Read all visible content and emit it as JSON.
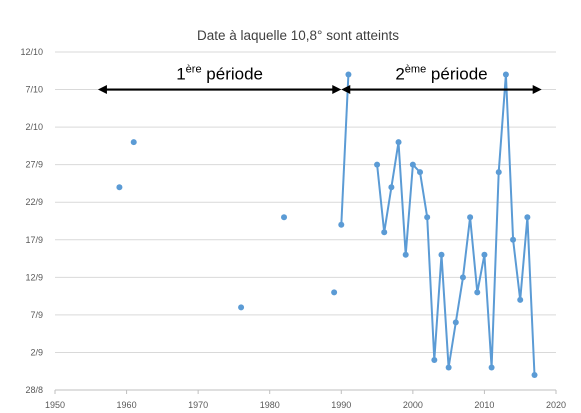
{
  "chart_data": {
    "type": "line",
    "title": "Date à laquelle 10,8° sont atteints",
    "xlabel": "",
    "ylabel": "",
    "xlim": [
      1950,
      2020
    ],
    "x_ticks": [
      "1950",
      "1960",
      "1970",
      "1980",
      "1990",
      "2000",
      "2010",
      "2020"
    ],
    "y_ticks": [
      "28/8",
      "2/9",
      "7/9",
      "12/9",
      "17/9",
      "22/9",
      "27/9",
      "2/10",
      "7/10",
      "12/10"
    ],
    "ylim": [
      "2019-08-28",
      "2019-10-12"
    ],
    "grid": "horizontal",
    "legend": "none",
    "color": "#5b9bd5",
    "series": [
      {
        "style": "markers",
        "points": [
          {
            "x": 1959,
            "y": "2019-09-24"
          },
          {
            "x": 1961,
            "y": "2019-09-30"
          },
          {
            "x": 1976,
            "y": "2019-09-08"
          },
          {
            "x": 1982,
            "y": "2019-09-20"
          },
          {
            "x": 1989,
            "y": "2019-09-10"
          }
        ]
      },
      {
        "style": "line-markers",
        "points": [
          {
            "x": 1990,
            "y": "2019-09-19"
          },
          {
            "x": 1991,
            "y": "2019-10-09"
          }
        ]
      },
      {
        "style": "line-markers",
        "points": [
          {
            "x": 1995,
            "y": "2019-09-27"
          },
          {
            "x": 1996,
            "y": "2019-09-18"
          },
          {
            "x": 1997,
            "y": "2019-09-24"
          },
          {
            "x": 1998,
            "y": "2019-09-30"
          },
          {
            "x": 1999,
            "y": "2019-09-15"
          },
          {
            "x": 2000,
            "y": "2019-09-27"
          },
          {
            "x": 2001,
            "y": "2019-09-26"
          },
          {
            "x": 2002,
            "y": "2019-09-20"
          },
          {
            "x": 2003,
            "y": "2019-09-01"
          },
          {
            "x": 2004,
            "y": "2019-09-15"
          },
          {
            "x": 2005,
            "y": "2019-08-31"
          },
          {
            "x": 2006,
            "y": "2019-09-06"
          },
          {
            "x": 2007,
            "y": "2019-09-12"
          },
          {
            "x": 2008,
            "y": "2019-09-20"
          },
          {
            "x": 2009,
            "y": "2019-09-10"
          },
          {
            "x": 2010,
            "y": "2019-09-15"
          },
          {
            "x": 2011,
            "y": "2019-08-31"
          },
          {
            "x": 2012,
            "y": "2019-09-26"
          },
          {
            "x": 2013,
            "y": "2019-10-09"
          },
          {
            "x": 2014,
            "y": "2019-09-17"
          },
          {
            "x": 2015,
            "y": "2019-09-09"
          },
          {
            "x": 2016,
            "y": "2019-09-20"
          },
          {
            "x": 2017,
            "y": "2019-08-30"
          }
        ]
      }
    ],
    "annotations": [
      {
        "label": "1",
        "sup": "ère",
        "rest": " période",
        "from": 1956,
        "to": 1990,
        "y": "2019-10-07"
      },
      {
        "label": "2",
        "sup": "ème",
        "rest": " période",
        "from": 1990,
        "to": 2018,
        "y": "2019-10-07"
      }
    ]
  }
}
